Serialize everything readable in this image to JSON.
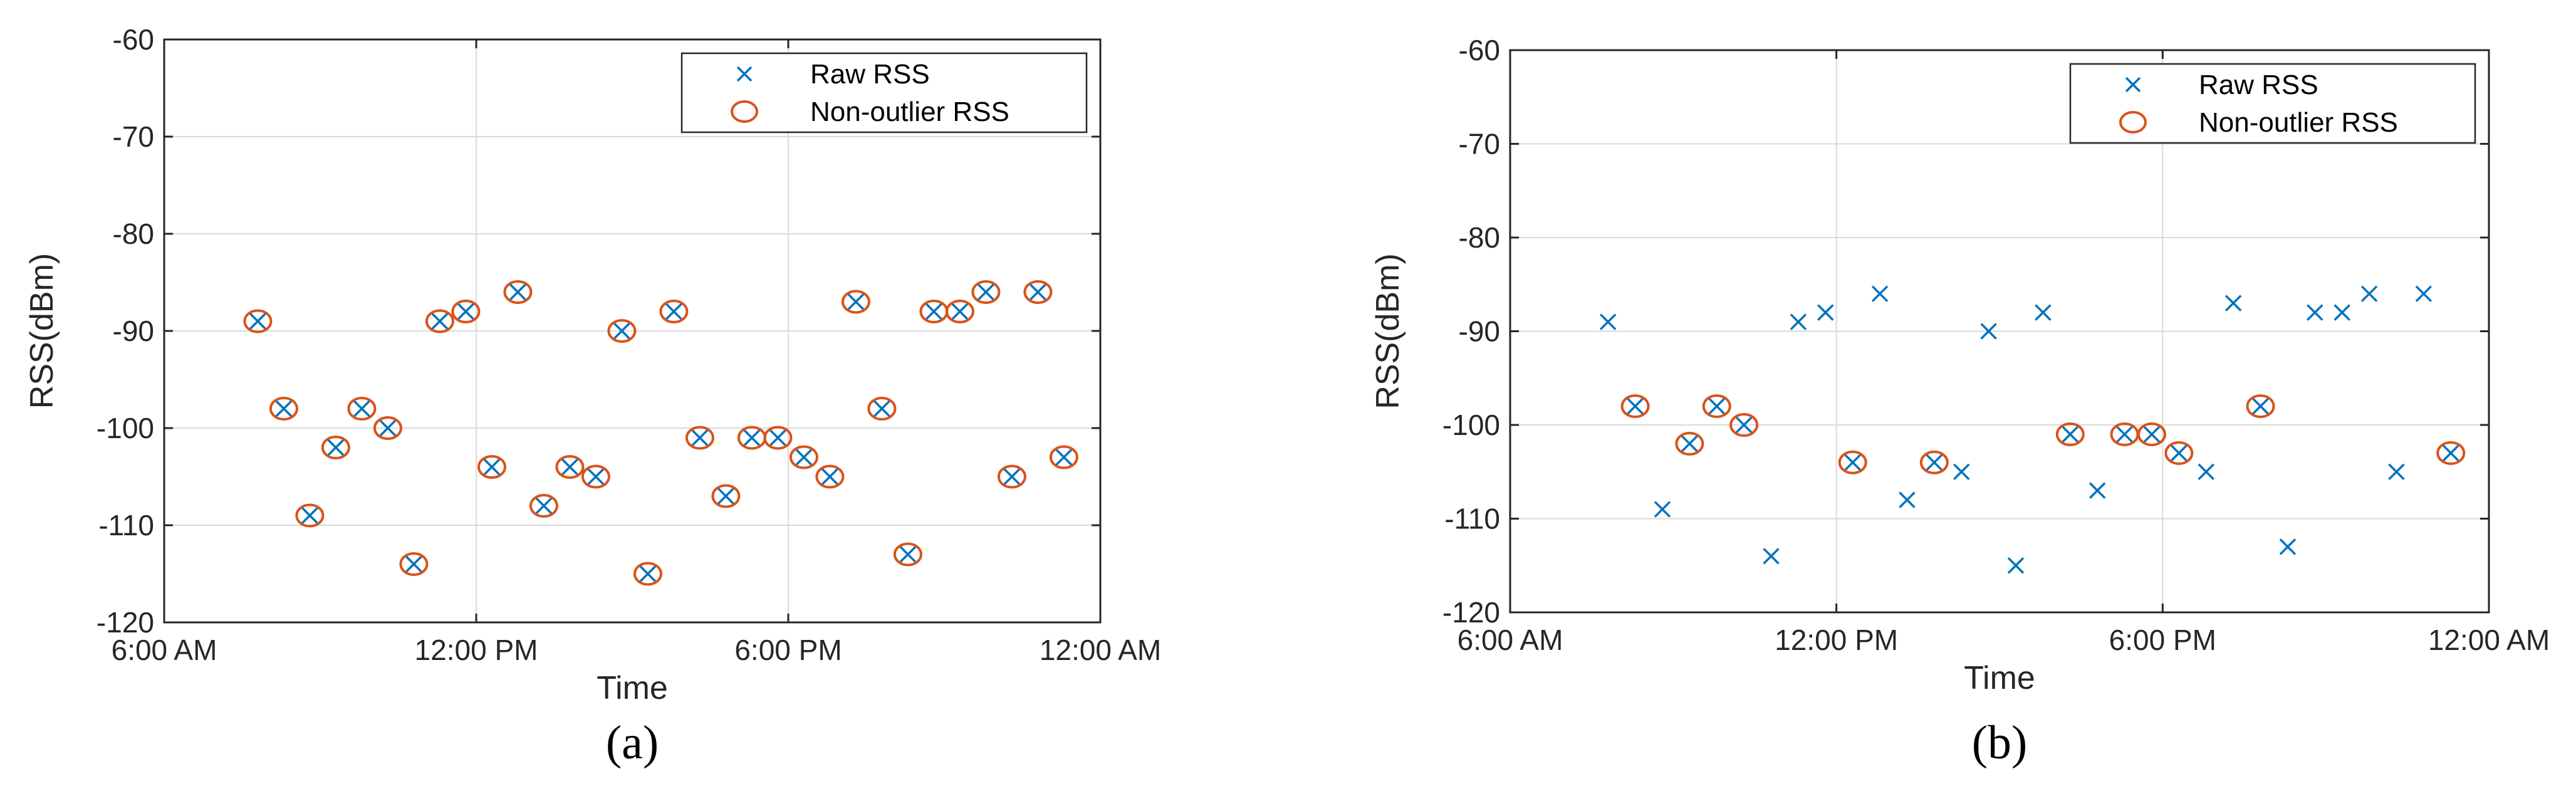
{
  "colors": {
    "raw": "#0072BD",
    "clean": "#D95319",
    "axis": "#262626",
    "grid": "#d9d9d9"
  },
  "chart_data": [
    {
      "type": "scatter",
      "panel_label": "(a)",
      "xlabel": "Time",
      "ylabel": "RSS(dBm)",
      "xlim": [
        6,
        24
      ],
      "ylim": [
        -120,
        -60
      ],
      "xticks": [
        6,
        12,
        18,
        24
      ],
      "xtick_labels": [
        "6:00 AM",
        "12:00 PM",
        "6:00 PM",
        "12:00 AM"
      ],
      "yticks": [
        -120,
        -110,
        -100,
        -90,
        -80,
        -70,
        -60
      ],
      "ytick_labels": [
        "-120",
        "-110",
        "-100",
        "-90",
        "-80",
        "-70",
        "-60"
      ],
      "grid": true,
      "legend_position": "top-right",
      "series": [
        {
          "name": "Raw RSS",
          "marker": "x",
          "x": [
            7.8,
            8.3,
            8.8,
            9.3,
            9.8,
            10.3,
            10.8,
            11.3,
            11.8,
            12.3,
            12.8,
            13.3,
            13.8,
            14.3,
            14.8,
            15.3,
            15.8,
            16.3,
            16.8,
            17.3,
            17.8,
            18.3,
            18.8,
            19.3,
            19.8,
            20.3,
            20.8,
            21.3,
            21.8,
            22.3,
            22.8,
            23.3
          ],
          "y": [
            -89,
            -98,
            -109,
            -102,
            -98,
            -100,
            -114,
            -89,
            -88,
            -104,
            -86,
            -108,
            -104,
            -105,
            -90,
            -115,
            -88,
            -101,
            -107,
            -101,
            -101,
            -103,
            -105,
            -87,
            -98,
            -113,
            -88,
            -88,
            -86,
            -105,
            -86,
            -103
          ]
        },
        {
          "name": "Non-outlier RSS",
          "marker": "o",
          "x": [
            7.8,
            8.3,
            8.8,
            9.3,
            9.8,
            10.3,
            10.8,
            11.3,
            11.8,
            12.3,
            12.8,
            13.3,
            13.8,
            14.3,
            14.8,
            15.3,
            15.8,
            16.3,
            16.8,
            17.3,
            17.8,
            18.3,
            18.8,
            19.3,
            19.8,
            20.3,
            20.8,
            21.3,
            21.8,
            22.3,
            22.8,
            23.3
          ],
          "y": [
            -89,
            -98,
            -109,
            -102,
            -98,
            -100,
            -114,
            -89,
            -88,
            -104,
            -86,
            -108,
            -104,
            -105,
            -90,
            -115,
            -88,
            -101,
            -107,
            -101,
            -101,
            -103,
            -105,
            -87,
            -98,
            -113,
            -88,
            -88,
            -86,
            -105,
            -86,
            -103
          ]
        }
      ]
    },
    {
      "type": "scatter",
      "panel_label": "(b)",
      "xlabel": "Time",
      "ylabel": "RSS(dBm)",
      "xlim": [
        6,
        24
      ],
      "ylim": [
        -120,
        -60
      ],
      "xticks": [
        6,
        12,
        18,
        24
      ],
      "xtick_labels": [
        "6:00 AM",
        "12:00 PM",
        "6:00 PM",
        "12:00 AM"
      ],
      "yticks": [
        -120,
        -110,
        -100,
        -90,
        -80,
        -70,
        -60
      ],
      "ytick_labels": [
        "-120",
        "-110",
        "-100",
        "-90",
        "-80",
        "-70",
        "-60"
      ],
      "grid": true,
      "legend_position": "top-right",
      "series": [
        {
          "name": "Raw RSS",
          "marker": "x",
          "x": [
            7.8,
            8.3,
            8.8,
            9.3,
            9.8,
            10.3,
            10.8,
            11.3,
            11.8,
            12.3,
            12.8,
            13.3,
            13.8,
            14.3,
            14.8,
            15.3,
            15.8,
            16.3,
            16.8,
            17.3,
            17.8,
            18.3,
            18.8,
            19.3,
            19.8,
            20.3,
            20.8,
            21.3,
            21.8,
            22.3,
            22.8,
            23.3
          ],
          "y": [
            -89,
            -98,
            -109,
            -102,
            -98,
            -100,
            -114,
            -89,
            -88,
            -104,
            -86,
            -108,
            -104,
            -105,
            -90,
            -115,
            -88,
            -101,
            -107,
            -101,
            -101,
            -103,
            -105,
            -87,
            -98,
            -113,
            -88,
            -88,
            -86,
            -105,
            -86,
            -103
          ]
        },
        {
          "name": "Non-outlier RSS",
          "marker": "o",
          "x": [
            8.3,
            9.3,
            9.8,
            10.3,
            12.3,
            13.8,
            16.3,
            17.3,
            17.8,
            18.3,
            19.8,
            23.3
          ],
          "y": [
            -98,
            -102,
            -98,
            -100,
            -104,
            -104,
            -101,
            -101,
            -101,
            -103,
            -98,
            -103
          ]
        }
      ]
    }
  ]
}
